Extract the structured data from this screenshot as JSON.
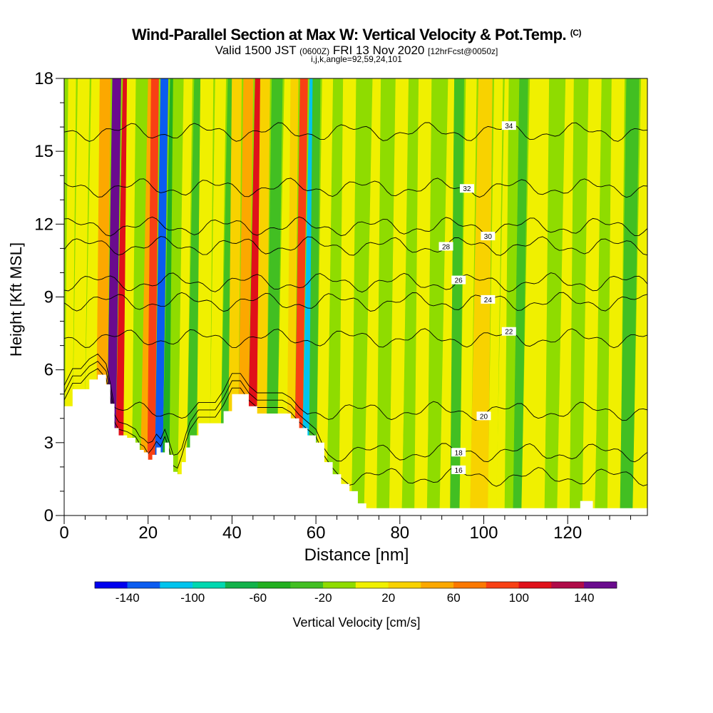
{
  "title": {
    "main": "Wind-Parallel Section at Max W: Vertical Velocity & Pot.Temp.",
    "unit_mark": "(C)",
    "valid_prefix": "Valid 1500 JST",
    "valid_utc": "(0600Z)",
    "valid_date": "FRI 13 Nov 2020",
    "forecast": "[12hrFcst@0050z]",
    "indices": "i,j,k,angle=92,59,24,101"
  },
  "chart_data": {
    "type": "heatmap",
    "xlabel": "Distance [nm]",
    "ylabel": "Height [Kft MSL]",
    "xlim": [
      0,
      139
    ],
    "ylim": [
      0,
      18
    ],
    "xticks": [
      0,
      20,
      40,
      60,
      80,
      100,
      120
    ],
    "yticks": [
      0,
      3,
      6,
      9,
      12,
      15,
      18
    ],
    "field": "Vertical Velocity",
    "colorbar": {
      "label": "Vertical Velocity [cm/s]",
      "tick_labels": [
        "-140",
        "-100",
        "-60",
        "-20",
        "20",
        "60",
        "100",
        "140"
      ],
      "tick_values": [
        -140,
        -100,
        -60,
        -20,
        20,
        60,
        100,
        140
      ],
      "levels": [
        -160,
        -140,
        -120,
        -100,
        -80,
        -60,
        -40,
        -20,
        0,
        20,
        40,
        60,
        80,
        100,
        120,
        140,
        160
      ],
      "colors": [
        "#0000ee",
        "#0a5cf0",
        "#00c4ee",
        "#00d8b0",
        "#12b24a",
        "#22b020",
        "#42bf22",
        "#8fdc00",
        "#f0f000",
        "#f8d200",
        "#fca800",
        "#fc7800",
        "#f84014",
        "#e0101a",
        "#b00a48",
        "#6a0a8e"
      ]
    },
    "columns": [
      {
        "x": 0.5,
        "w": 10
      },
      {
        "x": 3,
        "w": 4
      },
      {
        "x": 6,
        "w": 18
      },
      {
        "x": 9,
        "w": 40
      },
      {
        "x": 11,
        "w": 150
      },
      {
        "x": 13,
        "w": 100
      },
      {
        "x": 15,
        "w": 10
      },
      {
        "x": 17,
        "w": -10
      },
      {
        "x": 19,
        "w": 40
      },
      {
        "x": 20.5,
        "w": 90
      },
      {
        "x": 22.5,
        "w": -130
      },
      {
        "x": 24,
        "w": -60
      },
      {
        "x": 26,
        "w": -20
      },
      {
        "x": 28,
        "w": 15
      },
      {
        "x": 30,
        "w": -30
      },
      {
        "x": 33,
        "w": 0
      },
      {
        "x": 36,
        "w": 5
      },
      {
        "x": 38,
        "w": -25
      },
      {
        "x": 40,
        "w": 30
      },
      {
        "x": 42.5,
        "w": 50
      },
      {
        "x": 44.5,
        "w": 100
      },
      {
        "x": 47,
        "w": 30
      },
      {
        "x": 49,
        "w": -25
      },
      {
        "x": 52,
        "w": 10
      },
      {
        "x": 54,
        "w": 30
      },
      {
        "x": 55.5,
        "w": 85
      },
      {
        "x": 57.5,
        "w": -120
      },
      {
        "x": 59,
        "w": -40
      },
      {
        "x": 61,
        "w": 5
      },
      {
        "x": 64,
        "w": -15
      },
      {
        "x": 67,
        "w": 10
      },
      {
        "x": 70,
        "w": -10
      },
      {
        "x": 73,
        "w": 5
      },
      {
        "x": 76,
        "w": -15
      },
      {
        "x": 79,
        "w": 5
      },
      {
        "x": 82,
        "w": -10
      },
      {
        "x": 85,
        "w": 15
      },
      {
        "x": 88,
        "w": -20
      },
      {
        "x": 91,
        "w": 10
      },
      {
        "x": 93,
        "w": -30
      },
      {
        "x": 95.5,
        "w": 15
      },
      {
        "x": 98,
        "w": 35
      },
      {
        "x": 100,
        "w": 20
      },
      {
        "x": 102,
        "w": 10
      },
      {
        "x": 104,
        "w": 5
      },
      {
        "x": 106,
        "w": -10
      },
      {
        "x": 108,
        "w": -25
      },
      {
        "x": 110,
        "w": 10
      },
      {
        "x": 113,
        "w": 5
      },
      {
        "x": 116,
        "w": -20
      },
      {
        "x": 119,
        "w": 0
      },
      {
        "x": 122,
        "w": -10
      },
      {
        "x": 125,
        "w": 10
      },
      {
        "x": 128,
        "w": -15
      },
      {
        "x": 131,
        "w": 5
      },
      {
        "x": 134,
        "w": -25
      },
      {
        "x": 137,
        "w": 0
      }
    ],
    "terrain": [
      [
        0,
        4.5
      ],
      [
        2,
        5.2
      ],
      [
        4,
        5.2
      ],
      [
        6,
        5.6
      ],
      [
        8,
        5.8
      ],
      [
        10,
        5.4
      ],
      [
        11,
        4.6
      ],
      [
        12,
        3.6
      ],
      [
        13,
        3.3
      ],
      [
        15,
        3.2
      ],
      [
        17,
        3.0
      ],
      [
        18,
        2.7
      ],
      [
        19,
        2.6
      ],
      [
        20,
        2.3
      ],
      [
        21,
        2.5
      ],
      [
        22,
        2.8
      ],
      [
        23,
        2.6
      ],
      [
        24,
        3.0
      ],
      [
        25,
        2.5
      ],
      [
        26,
        1.8
      ],
      [
        27,
        1.7
      ],
      [
        28,
        2.2
      ],
      [
        29,
        2.8
      ],
      [
        30,
        3.3
      ],
      [
        32,
        3.8
      ],
      [
        34,
        3.8
      ],
      [
        36,
        3.8
      ],
      [
        38,
        4.3
      ],
      [
        40,
        5.0
      ],
      [
        42,
        5.0
      ],
      [
        44,
        4.5
      ],
      [
        46,
        4.2
      ],
      [
        48,
        4.2
      ],
      [
        50,
        4.2
      ],
      [
        52,
        4.2
      ],
      [
        54,
        4.0
      ],
      [
        56,
        3.6
      ],
      [
        58,
        3.3
      ],
      [
        60,
        3.0
      ],
      [
        62,
        2.2
      ],
      [
        64,
        1.7
      ],
      [
        66,
        1.3
      ],
      [
        68,
        1.0
      ],
      [
        70,
        0.5
      ],
      [
        72,
        0.3
      ],
      [
        80,
        0.3
      ],
      [
        90,
        0.3
      ],
      [
        100,
        0.3
      ],
      [
        110,
        0.3
      ],
      [
        120,
        0.3
      ],
      [
        123,
        0.6
      ],
      [
        126,
        0.3
      ],
      [
        139,
        0.3
      ]
    ],
    "isentropes": [
      {
        "label": "16",
        "base": 1.6,
        "label_x": 94
      },
      {
        "label": "18",
        "base": 2.6,
        "label_x": 94
      },
      {
        "label": "20",
        "base": 4.3,
        "label_x": 100
      },
      {
        "label": "22",
        "base": 7.3,
        "label_x": 106
      },
      {
        "label": "24",
        "base": 8.8,
        "label_x": 101
      },
      {
        "label": "26",
        "base": 9.6,
        "label_x": 94
      },
      {
        "label": "28",
        "base": 11.1,
        "label_x": 91
      },
      {
        "label": "30",
        "base": 11.9,
        "label_x": 101
      },
      {
        "label": "32",
        "base": 13.5,
        "label_x": 96
      },
      {
        "label": "34",
        "base": 15.8,
        "label_x": 106
      }
    ]
  }
}
